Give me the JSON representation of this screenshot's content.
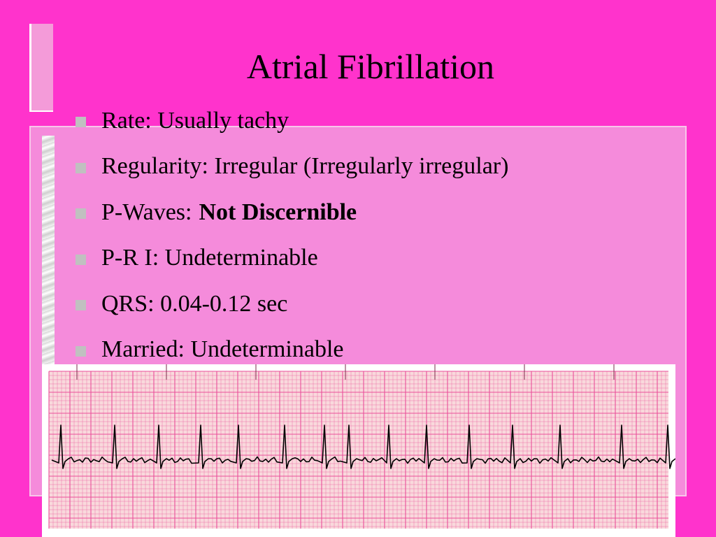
{
  "slide": {
    "title": "Atrial Fibrillation",
    "bullets": [
      {
        "label": "Rate: Usually tachy",
        "emphasis": ""
      },
      {
        "label": "Regularity: Irregular (Irregularly irregular)",
        "emphasis": ""
      },
      {
        "label": "P-Waves:",
        "emphasis": "Not Discernible"
      },
      {
        "label": "P-R I:  Undeterminable",
        "emphasis": ""
      },
      {
        "label": "QRS:  0.04-0.12 sec",
        "emphasis": ""
      },
      {
        "label": "Married: Undeterminable",
        "emphasis": ""
      }
    ]
  },
  "colors": {
    "background": "#ff33cc",
    "panel": "#f58bdb",
    "bullet": "#c0c0c0",
    "ecg_paper": "#f9d9dc",
    "ecg_grid": "#ea4f9a",
    "ecg_trace": "#000000"
  },
  "ecg_strip": {
    "rhythm": "atrial fibrillation",
    "beat_count": 15
  }
}
